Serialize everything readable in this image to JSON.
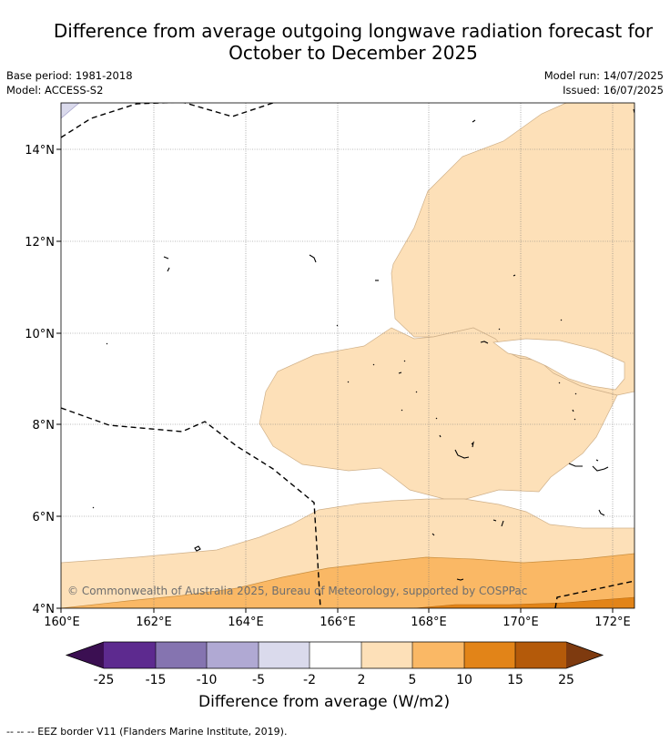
{
  "title": {
    "line1": "Difference from average outgoing longwave radiation forecast for",
    "line2": "October to December 2025"
  },
  "meta": {
    "base_period": "Base period: 1981-2018",
    "model": "Model: ACCESS-S2",
    "model_run": "Model run: 14/07/2025",
    "issued": "Issued: 16/07/2025"
  },
  "map": {
    "lat_ticks": [
      "14°N",
      "12°N",
      "10°N",
      "8°N",
      "6°N",
      "4°N"
    ],
    "lon_ticks": [
      "160°E",
      "162°E",
      "164°E",
      "166°E",
      "168°E",
      "170°E",
      "172°E"
    ],
    "copyright": "© Commonwealth of Australia 2025, Bureau of Meteorology, supported by COSPPac"
  },
  "colorbar": {
    "labels": [
      "-25",
      "-15",
      "-10",
      "-5",
      "-2",
      "2",
      "5",
      "10",
      "15",
      "25"
    ],
    "colors": {
      "under": "#3b0f52",
      "c1": "#5d2a8f",
      "c2": "#8574b0",
      "c3": "#b0a9d3",
      "c4": "#dadaec",
      "c5": "#ffffff",
      "c6": "#fde0b8",
      "c7": "#fab865",
      "c8": "#e28418",
      "c9": "#b45a0a",
      "over": "#7e3a0f"
    },
    "title": "Difference from average (W/m2)"
  },
  "legend_note": "--  --  -- EEZ border V11 (Flanders Marine Institute, 2019)."
}
